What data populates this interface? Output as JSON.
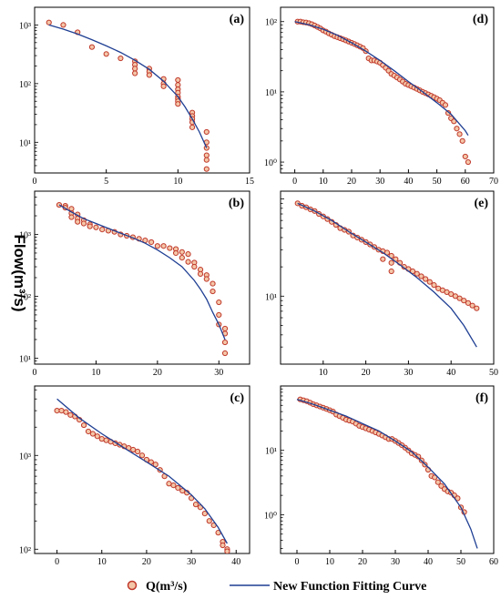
{
  "figure": {
    "ylabel": "Flow(m³/s)",
    "legend": {
      "items": [
        {
          "label": "Q(m³/s)",
          "kind": "marker",
          "color": "#c0392b",
          "fill": "#f4c6a8"
        },
        {
          "label": "New Function Fitting Curve",
          "kind": "line",
          "color": "#1f3f93"
        }
      ],
      "placement": "bottom-center"
    }
  },
  "chart_data": [
    {
      "type": "scatter",
      "panel_label": "(a)",
      "xlim": [
        0,
        15
      ],
      "xticks": [
        0,
        5,
        10,
        15
      ],
      "xticklabels": [
        "0",
        "5",
        "10",
        "15"
      ],
      "ylim": [
        3,
        2000
      ],
      "yscale": "log",
      "yticks": [
        10,
        100,
        1000
      ],
      "yticklabels": [
        "10¹",
        "10²",
        "10³"
      ],
      "series": [
        {
          "kind": "marker",
          "x": [
            1,
            2,
            3,
            4,
            5,
            6,
            7,
            7,
            7,
            7,
            8,
            8,
            8,
            9,
            9,
            9,
            10,
            10,
            10,
            10,
            10,
            10,
            10,
            10,
            11,
            11,
            11,
            11,
            11,
            12,
            12,
            12,
            12,
            12,
            12
          ],
          "y": [
            1100,
            1000,
            750,
            420,
            320,
            270,
            240,
            210,
            180,
            150,
            180,
            160,
            140,
            120,
            100,
            90,
            115,
            95,
            80,
            70,
            60,
            55,
            50,
            45,
            32,
            28,
            25,
            22,
            18,
            15,
            10,
            8,
            6,
            5,
            3.5
          ]
        },
        {
          "kind": "line",
          "x": [
            1,
            2,
            3,
            4,
            5,
            6,
            7,
            8,
            9,
            10,
            10.5,
            11,
            11.5,
            12
          ],
          "y": [
            1000,
            850,
            700,
            560,
            440,
            340,
            250,
            175,
            110,
            60,
            40,
            25,
            15,
            8
          ]
        }
      ]
    },
    {
      "type": "scatter",
      "panel_label": "(d)",
      "xlim": [
        -5,
        70
      ],
      "xticks": [
        0,
        10,
        20,
        30,
        40,
        50,
        60,
        70
      ],
      "xticklabels": [
        "0",
        "10",
        "20",
        "30",
        "40",
        "50",
        "60",
        "70"
      ],
      "ylim": [
        0.7,
        160
      ],
      "yscale": "log",
      "yticks": [
        1,
        10,
        100
      ],
      "yticklabels": [
        "10⁰",
        "10¹",
        "10²"
      ],
      "series": [
        {
          "kind": "marker",
          "x": [
            1,
            2,
            3,
            4,
            5,
            6,
            7,
            8,
            9,
            10,
            11,
            12,
            13,
            14,
            15,
            16,
            17,
            18,
            19,
            20,
            21,
            22,
            23,
            24,
            25,
            26,
            27,
            28,
            29,
            30,
            31,
            32,
            33,
            34,
            35,
            36,
            37,
            38,
            39,
            40,
            41,
            42,
            43,
            44,
            45,
            46,
            47,
            48,
            49,
            50,
            51,
            52,
            53,
            54,
            55,
            56,
            57,
            58,
            59,
            60,
            61
          ],
          "y": [
            100,
            100,
            98,
            97,
            95,
            92,
            88,
            84,
            80,
            75,
            72,
            68,
            65,
            62,
            60,
            58,
            56,
            54,
            52,
            50,
            48,
            46,
            44,
            42,
            38,
            30,
            28,
            28,
            27,
            26,
            24,
            22,
            20,
            18,
            17,
            16,
            15,
            14,
            13,
            12.5,
            12,
            11.5,
            11,
            10.5,
            10,
            9.6,
            9.2,
            8.8,
            8.4,
            8,
            7.6,
            7,
            6.5,
            5,
            4.2,
            3.8,
            3,
            2.5,
            2,
            1.2,
            1
          ]
        },
        {
          "kind": "line",
          "x": [
            0,
            5,
            10,
            15,
            20,
            25,
            30,
            35,
            40,
            45,
            50,
            55,
            60,
            61
          ],
          "y": [
            100,
            90,
            78,
            64,
            50,
            38,
            28,
            20,
            14,
            10,
            7,
            4.8,
            2.8,
            2.4
          ]
        }
      ]
    },
    {
      "type": "scatter",
      "panel_label": "(b)",
      "xlim": [
        0,
        35
      ],
      "xticks": [
        0,
        10,
        20,
        30
      ],
      "xticklabels": [
        "0",
        "10",
        "20",
        "30"
      ],
      "ylim": [
        8,
        5000
      ],
      "yscale": "log",
      "yticks": [
        10,
        100,
        1000
      ],
      "yticklabels": [
        "10¹",
        "10²",
        "10³"
      ],
      "series": [
        {
          "kind": "marker",
          "x": [
            4,
            5,
            5,
            6,
            6,
            6,
            7,
            7,
            7,
            8,
            8,
            9,
            9,
            10,
            11,
            12,
            13,
            14,
            15,
            16,
            17,
            18,
            19,
            20,
            21,
            22,
            23,
            23,
            24,
            24,
            25,
            25,
            26,
            26,
            27,
            27,
            28,
            28,
            29,
            29,
            30,
            30,
            30,
            31,
            31,
            31,
            31
          ],
          "y": [
            3000,
            2900,
            2700,
            2600,
            2200,
            1900,
            2100,
            1800,
            1600,
            1700,
            1500,
            1450,
            1350,
            1300,
            1200,
            1150,
            1100,
            1000,
            950,
            900,
            850,
            800,
            750,
            650,
            650,
            600,
            580,
            500,
            520,
            420,
            480,
            360,
            350,
            300,
            270,
            230,
            220,
            190,
            160,
            120,
            80,
            50,
            35,
            30,
            25,
            18,
            12
          ]
        },
        {
          "kind": "line",
          "x": [
            4,
            6,
            8,
            10,
            12,
            14,
            16,
            18,
            20,
            22,
            24,
            26,
            27,
            28,
            29,
            30,
            31
          ],
          "y": [
            3000,
            2300,
            1800,
            1500,
            1250,
            1050,
            880,
            720,
            560,
            420,
            300,
            180,
            130,
            90,
            55,
            35,
            20
          ]
        }
      ]
    },
    {
      "type": "scatter",
      "panel_label": "(e)",
      "xlim": [
        0,
        50
      ],
      "xticks": [
        10,
        20,
        30,
        40,
        50
      ],
      "xticklabels": [
        "10",
        "20",
        "30",
        "40",
        "50"
      ],
      "ylim": [
        2,
        120
      ],
      "yscale": "log",
      "yticks": [
        10
      ],
      "yticklabels": [
        "10¹"
      ],
      "series": [
        {
          "kind": "marker",
          "x": [
            4,
            5,
            6,
            7,
            8,
            9,
            10,
            11,
            12,
            13,
            14,
            15,
            16,
            17,
            18,
            19,
            20,
            21,
            22,
            23,
            24,
            24,
            25,
            26,
            26,
            26,
            27,
            28,
            29,
            30,
            31,
            32,
            33,
            34,
            35,
            36,
            37,
            38,
            39,
            40,
            41,
            42,
            43,
            44,
            45,
            46
          ],
          "y": [
            90,
            85,
            82,
            78,
            75,
            70,
            66,
            62,
            58,
            54,
            50,
            48,
            46,
            42,
            40,
            38,
            36,
            34,
            32,
            30,
            29,
            24,
            28,
            26,
            22,
            18,
            24,
            22,
            20,
            19,
            18,
            17,
            16,
            15,
            14,
            13,
            12,
            11.5,
            11,
            10.5,
            10,
            9.5,
            9,
            8.5,
            8,
            7.5
          ]
        },
        {
          "kind": "line",
          "x": [
            4,
            8,
            12,
            16,
            20,
            24,
            28,
            32,
            36,
            40,
            43,
            46
          ],
          "y": [
            90,
            75,
            60,
            46,
            36,
            28,
            21,
            15.5,
            11,
            7.5,
            5,
            3
          ]
        }
      ]
    },
    {
      "type": "scatter",
      "panel_label": "(c)",
      "xlim": [
        -5,
        43
      ],
      "xticks": [
        0,
        10,
        20,
        30,
        40
      ],
      "xticklabels": [
        "0",
        "10",
        "20",
        "30",
        "40"
      ],
      "ylim": [
        90,
        5500
      ],
      "yscale": "log",
      "yticks": [
        100,
        1000
      ],
      "yticklabels": [
        "10²",
        "10³"
      ],
      "series": [
        {
          "kind": "marker",
          "x": [
            0,
            1,
            2,
            3,
            4,
            5,
            6,
            7,
            8,
            9,
            10,
            11,
            12,
            13,
            14,
            15,
            16,
            17,
            18,
            19,
            20,
            21,
            22,
            23,
            24,
            25,
            26,
            27,
            28,
            29,
            30,
            31,
            32,
            33,
            34,
            35,
            36,
            37,
            37,
            38,
            38
          ],
          "y": [
            3000,
            3000,
            2900,
            2700,
            2600,
            2400,
            2100,
            1800,
            1700,
            1600,
            1500,
            1450,
            1400,
            1350,
            1300,
            1250,
            1200,
            1150,
            1100,
            1000,
            900,
            850,
            800,
            700,
            600,
            500,
            480,
            450,
            420,
            400,
            350,
            300,
            280,
            240,
            200,
            180,
            150,
            120,
            110,
            100,
            95
          ]
        },
        {
          "kind": "line",
          "x": [
            0,
            5,
            10,
            15,
            20,
            25,
            30,
            33,
            36,
            38
          ],
          "y": [
            4000,
            2500,
            1700,
            1200,
            850,
            600,
            380,
            270,
            170,
            115
          ]
        }
      ]
    },
    {
      "type": "scatter",
      "panel_label": "(f)",
      "xlim": [
        -5,
        60
      ],
      "xticks": [
        0,
        10,
        20,
        30,
        40,
        50,
        60
      ],
      "xticklabels": [
        "0",
        "10",
        "20",
        "30",
        "40",
        "50",
        "60"
      ],
      "ylim": [
        0.25,
        100
      ],
      "yscale": "log",
      "yticks": [
        1,
        10
      ],
      "yticklabels": [
        "10⁰",
        "10¹"
      ],
      "series": [
        {
          "kind": "marker",
          "x": [
            1,
            2,
            3,
            4,
            5,
            6,
            7,
            8,
            9,
            10,
            11,
            12,
            13,
            14,
            15,
            16,
            17,
            18,
            19,
            20,
            21,
            22,
            23,
            24,
            25,
            26,
            27,
            28,
            29,
            30,
            31,
            32,
            33,
            34,
            35,
            36,
            37,
            38,
            39,
            40,
            41,
            42,
            43,
            44,
            45,
            46,
            47,
            48,
            49,
            50,
            51
          ],
          "y": [
            62,
            60,
            58,
            55,
            52,
            50,
            48,
            46,
            44,
            42,
            40,
            36,
            34,
            32,
            30,
            29,
            28,
            26,
            24,
            23,
            22,
            21,
            20,
            19,
            18,
            17,
            16,
            15,
            15,
            14,
            13,
            12,
            11,
            10,
            9,
            8.5,
            8,
            7,
            6,
            5,
            4,
            3.8,
            3.2,
            2.8,
            2.5,
            2.3,
            2.2,
            2,
            1.8,
            1.3,
            1.1
          ]
        },
        {
          "kind": "line",
          "x": [
            0,
            5,
            10,
            15,
            20,
            25,
            30,
            35,
            40,
            45,
            50,
            53,
            55
          ],
          "y": [
            62,
            52,
            42,
            34,
            26,
            20,
            14,
            9.5,
            5.5,
            3,
            1.3,
            0.6,
            0.3
          ]
        }
      ]
    }
  ]
}
